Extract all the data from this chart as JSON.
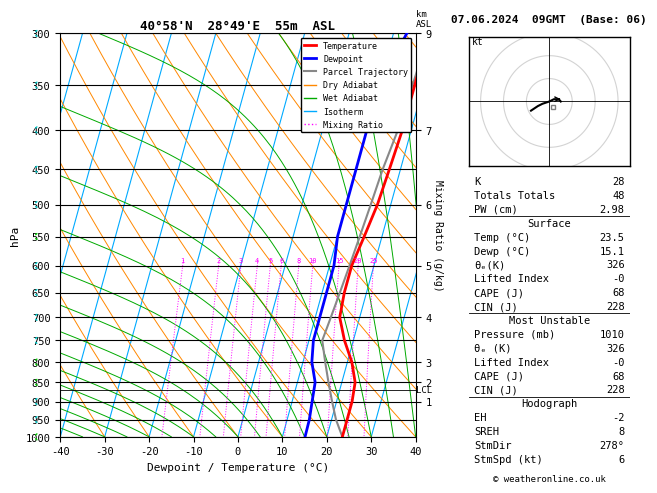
{
  "title_left": "40°58'N  28°49'E  55m  ASL",
  "title_right": "07.06.2024  09GMT  (Base: 06)",
  "xlabel": "Dewpoint / Temperature (°C)",
  "ylabel_left": "hPa",
  "pressure_levels": [
    300,
    350,
    400,
    450,
    500,
    550,
    600,
    650,
    700,
    750,
    800,
    850,
    900,
    950,
    1000
  ],
  "temp_x": [
    18,
    18,
    18,
    17.5,
    17,
    16,
    15,
    15,
    15.5,
    18,
    21,
    23,
    23.5,
    23.5,
    23.5
  ],
  "dewp_x": [
    13,
    10,
    10,
    10,
    10,
    10,
    11,
    11,
    11,
    11,
    12,
    14,
    14.5,
    15,
    15.1
  ],
  "parcel_x": [
    18,
    17.5,
    17,
    16,
    15.5,
    15,
    14.5,
    14,
    13.5,
    13,
    15,
    17,
    19,
    21,
    23.5
  ],
  "xlim": [
    -40,
    40
  ],
  "colors": {
    "temperature": "#ff0000",
    "dewpoint": "#0000ff",
    "parcel": "#888888",
    "dry_adiabat": "#ff8800",
    "wet_adiabat": "#00aa00",
    "isotherm": "#00aaff",
    "mixing_ratio": "#ff00ff",
    "background": "#ffffff"
  },
  "legend_items": [
    {
      "label": "Temperature",
      "color": "#ff0000",
      "lw": 2,
      "ls": "-"
    },
    {
      "label": "Dewpoint",
      "color": "#0000ff",
      "lw": 2,
      "ls": "-"
    },
    {
      "label": "Parcel Trajectory",
      "color": "#888888",
      "lw": 1.5,
      "ls": "-"
    },
    {
      "label": "Dry Adiabat",
      "color": "#ff8800",
      "lw": 1,
      "ls": "-"
    },
    {
      "label": "Wet Adiabat",
      "color": "#00aa00",
      "lw": 1,
      "ls": "-"
    },
    {
      "label": "Isotherm",
      "color": "#00aaff",
      "lw": 1,
      "ls": "-"
    },
    {
      "label": "Mixing Ratio",
      "color": "#ff00ff",
      "lw": 1,
      "ls": ":"
    }
  ],
  "km_p_labels": [
    [
      300,
      "9"
    ],
    [
      400,
      "7"
    ],
    [
      500,
      "6"
    ],
    [
      600,
      "5"
    ],
    [
      700,
      "4"
    ],
    [
      800,
      "3"
    ],
    [
      850,
      "2"
    ],
    [
      900,
      "1"
    ]
  ],
  "mixing_ratios": [
    1,
    2,
    3,
    4,
    5,
    6,
    8,
    10,
    15,
    20,
    25
  ],
  "lcl_pressure": 870,
  "data_table": {
    "K": "28",
    "Totals Totals": "48",
    "PW (cm)": "2.98",
    "Temp (C)": "23.5",
    "Dewp (C)": "15.1",
    "theta_e_K": "326",
    "LI_sfc": "-0",
    "CAPE_sfc": "68",
    "CIN_sfc": "228",
    "Pressure (mb)": "1010",
    "theta_e_K_mu": "326",
    "LI_mu": "-0",
    "CAPE_mu": "68",
    "CIN_mu": "228",
    "EH": "-2",
    "SREH": "8",
    "StmDir": "278°",
    "StmSpd": "6"
  },
  "wind_barb_colors": [
    "#00cccc",
    "#00cccc",
    "#00cccc",
    "#00cccc",
    "#00cccc",
    "#00cc00",
    "#00cccc",
    "#00cccc",
    "#00cccc",
    "#00cccc",
    "#00cc00",
    "#00cc00",
    "#00cccc",
    "#00cccc",
    "#00cc00"
  ]
}
